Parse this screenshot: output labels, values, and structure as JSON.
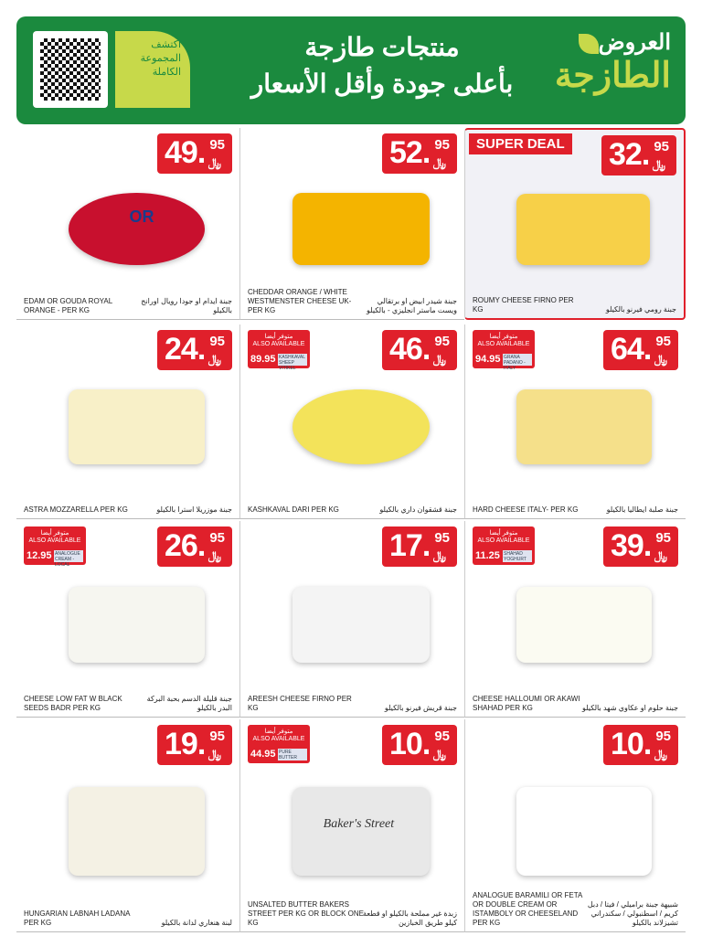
{
  "header": {
    "discover": "اكتشف المجموعة الكاملة",
    "title_line1": "منتجات طازجة",
    "title_line2": "بأعلى جودة وأقل الأسعار",
    "brand_line1": "العروض",
    "brand_line2": "الطازجة",
    "brand_color": "#1b8a3e",
    "accent": "#c7d94a"
  },
  "currency": "﷼",
  "also_ar": "متوفر أيضا",
  "also_en": "ALSO AVAILABLE",
  "super_deal": "SUPER DEAL",
  "products": [
    {
      "int": "49.",
      "dec": "95",
      "en": "EDAM OR GOUDA ROYAL ORANGE - PER KG",
      "ar": "جبنة ايدام او جودا رويال اورانج بالكيلو",
      "or": "OR",
      "color": "#c8102e"
    },
    {
      "int": "52.",
      "dec": "95",
      "en": "CHEDDAR ORANGE / WHITE WESTMENSTER CHEESE UK-PER KG",
      "ar": "جبنة شيدر ابيض او برتقالي ويست ماستر انجليزي - بالكيلو",
      "color": "#f4b400"
    },
    {
      "int": "32.",
      "dec": "95",
      "en": "ROUMY CHEESE FIRNO PER KG",
      "ar": "جبنة رومي فيرنو بالكيلو",
      "deal": true,
      "color": "#f7d048"
    },
    {
      "int": "24.",
      "dec": "95",
      "en": "ASTRA MOZZARELLA PER KG",
      "ar": "جبنة موزريلا استرا بالكيلو",
      "color": "#f8f0c8"
    },
    {
      "int": "46.",
      "dec": "95",
      "en": "KASHKAVAL DARI PER KG",
      "ar": "جبنة قشقوان داري بالكيلو",
      "also": {
        "price": "89.95",
        "tag": "KASHKAVAL SHEEP VITIKEL"
      },
      "color": "#f3e35a"
    },
    {
      "int": "64.",
      "dec": "95",
      "en": "HARD CHEESE  ITALY- PER KG",
      "ar": "جبنة صلبة ايطاليا بالكيلو",
      "also": {
        "price": "94.95",
        "tag": "GRANA PADANO - ITALY"
      },
      "color": "#f5e08a"
    },
    {
      "int": "26.",
      "dec": "95",
      "en": "CHEESE LOW FAT W BLACK SEEDS  BADR PER KG",
      "ar": "جبنة قليلة الدسم بحبة البركة البدر بالكيلو",
      "also": {
        "price": "12.95",
        "tag": "ANALOGUE CREAM - LOCAL"
      },
      "color": "#f6f6f0"
    },
    {
      "int": "17.",
      "dec": "95",
      "en": "AREESH CHEESE FIRNO  PER KG",
      "ar": "جبنة قريش فيرنو بالكيلو",
      "color": "#f4f4f4"
    },
    {
      "int": "39.",
      "dec": "95",
      "en": "CHEESE HALLOUMI OR AKAWI SHAHAD PER KG",
      "ar": "جبنة حلوم او عكاوي شهد بالكيلو",
      "also": {
        "price": "11.25",
        "tag": "SHAHAD YOGHURT"
      },
      "color": "#fbfbf2"
    },
    {
      "int": "19.",
      "dec": "95",
      "en": "HUNGARIAN LABNAH LADANA PER KG",
      "ar": "لبنة هنغاري لدانة بالكيلو",
      "color": "#f4f1e4"
    },
    {
      "int": "10.",
      "dec": "95",
      "en": "UNSALTED BUTTER BAKERS STREET PER KG OR BLOCK ONE KG",
      "ar": "زبدة غير مملحة بالكيلو او قطعة كيلو طريق الخبازين",
      "also": {
        "price": "44.95",
        "tag": "PURE BUTTER"
      },
      "box": "Baker's Street",
      "color": "#e8e8e8"
    },
    {
      "int": "10.",
      "dec": "95",
      "en": "ANALOGUE BARAMILI OR FETA OR DOUBLE CREAM OR ISTAMBOLY OR CHEESELAND PER KG",
      "ar": "شبيهة جبنة براميلي / فيتا / دبل كريم / اسطنبولي / سكندراني تشيزلاند بالكيلو",
      "color": "#ffffff"
    }
  ]
}
